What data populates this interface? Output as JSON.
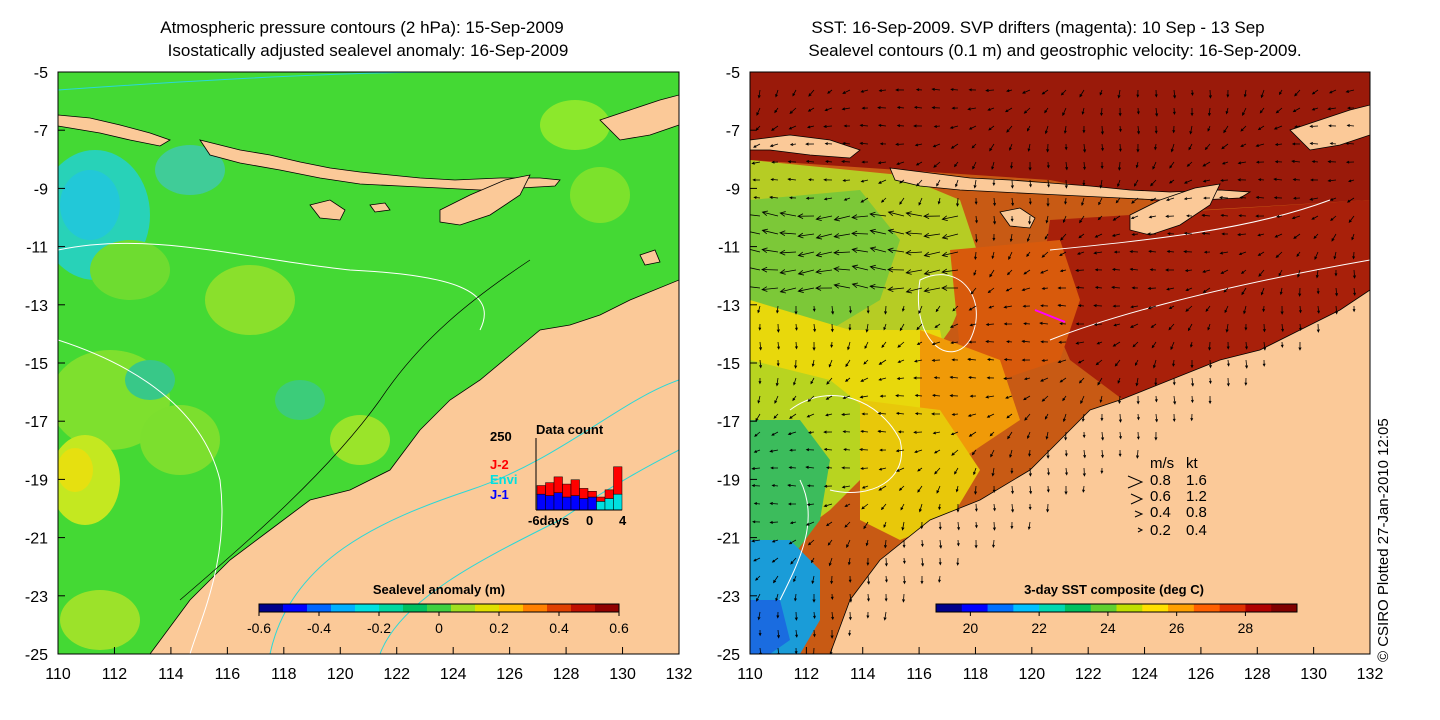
{
  "left_panel": {
    "title_line1": "Atmospheric pressure contours (2 hPa): 15-Sep-2009",
    "title_line2": "Isostatically adjusted sealevel anomaly: 16-Sep-2009",
    "colorbar": {
      "label": "Sealevel anomaly (m)",
      "ticks": [
        "-0.6",
        "-0.4",
        "-0.2",
        "0",
        "0.2",
        "0.4",
        "0.6"
      ],
      "colors": [
        "#00008b",
        "#0000ff",
        "#0066ff",
        "#00b0ff",
        "#00e0e0",
        "#00d8a0",
        "#00c060",
        "#40d040",
        "#a0e020",
        "#e0e000",
        "#ffc000",
        "#ff8000",
        "#e04000",
        "#c01000",
        "#900000"
      ]
    },
    "inset": {
      "title": "Data count",
      "ymax_label": "250",
      "legend": [
        {
          "label": "J-2",
          "color": "#ff0000"
        },
        {
          "label": "Envi",
          "color": "#00e0e0"
        },
        {
          "label": "J-1",
          "color": "#0000ff"
        }
      ],
      "xlabel_left": "-6days",
      "xlabel_mid": "0",
      "xlabel_right": "4"
    }
  },
  "right_panel": {
    "title_line1": "SST: 16-Sep-2009. SVP drifters (magenta): 10 Sep - 13 Sep",
    "title_line2": "Sealevel contours (0.1 m) and geostrophic velocity: 16-Sep-2009.",
    "colorbar": {
      "label": "3-day SST composite (deg C)",
      "ticks": [
        "20",
        "22",
        "24",
        "26",
        "28"
      ],
      "colors": [
        "#00008b",
        "#0000ff",
        "#0070ff",
        "#00c0ff",
        "#00d8b0",
        "#00c060",
        "#60d030",
        "#c0e000",
        "#ffe000",
        "#ffa000",
        "#ff6000",
        "#e03000",
        "#b00000",
        "#800000"
      ]
    },
    "velocity_legend": {
      "header_ms": "m/s",
      "header_kt": "kt",
      "rows": [
        {
          "ms": "0.8",
          "kt": "1.6"
        },
        {
          "ms": "0.6",
          "kt": "1.2"
        },
        {
          "ms": "0.4",
          "kt": "0.8"
        },
        {
          "ms": "0.2",
          "kt": "0.4"
        }
      ]
    }
  },
  "credit": "© CSIRO Plotted 27-Jan-2010 12:05",
  "chart_data": [
    {
      "type": "heatmap",
      "title": "Atmospheric pressure contours (2 hPa): 15-Sep-2009 / Isostatically adjusted sealevel anomaly: 16-Sep-2009",
      "xlabel": "",
      "ylabel": "",
      "xlim": [
        110,
        132
      ],
      "ylim": [
        -25,
        -5
      ],
      "x_ticks": [
        110,
        112,
        114,
        116,
        118,
        120,
        122,
        124,
        126,
        128,
        130,
        132
      ],
      "y_ticks": [
        -5,
        -7,
        -9,
        -11,
        -13,
        -15,
        -17,
        -19,
        -21,
        -23,
        -25
      ],
      "colorbar_label": "Sealevel anomaly (m)",
      "colorbar_range": [
        -0.6,
        0.6
      ],
      "inset": {
        "type": "bar",
        "title": "Data count",
        "ylim": [
          0,
          250
        ],
        "x": [
          -6,
          -5,
          -4,
          -3,
          -2,
          -1,
          0,
          1,
          2,
          3
        ],
        "series": [
          {
            "name": "J-1",
            "values": [
              55,
              50,
              60,
              45,
              50,
              40,
              45,
              0,
              0,
              0
            ]
          },
          {
            "name": "Envi",
            "values": [
              0,
              0,
              0,
              0,
              0,
              0,
              0,
              30,
              40,
              55
            ]
          },
          {
            "name": "J-2",
            "values": [
              30,
              45,
              55,
              45,
              55,
              35,
              20,
              15,
              30,
              95
            ]
          }
        ]
      }
    },
    {
      "type": "heatmap",
      "title": "SST: 16-Sep-2009. SVP drifters (magenta): 10 Sep - 13 Sep / Sealevel contours (0.1 m) and geostrophic velocity: 16-Sep-2009.",
      "xlabel": "",
      "ylabel": "",
      "xlim": [
        110,
        132
      ],
      "ylim": [
        -25,
        -5
      ],
      "x_ticks": [
        110,
        112,
        114,
        116,
        118,
        120,
        122,
        124,
        126,
        128,
        130,
        132
      ],
      "y_ticks": [
        -5,
        -7,
        -9,
        -11,
        -13,
        -15,
        -17,
        -19,
        -21,
        -23,
        -25
      ],
      "colorbar_label": "3-day SST composite (deg C)",
      "colorbar_range": [
        19,
        29.5
      ],
      "colorbar_ticks": [
        20,
        22,
        24,
        26,
        28
      ],
      "velocity_scale": [
        {
          "ms": 0.8,
          "kt": 1.6
        },
        {
          "ms": 0.6,
          "kt": 1.2
        },
        {
          "ms": 0.4,
          "kt": 0.8
        },
        {
          "ms": 0.2,
          "kt": 0.4
        }
      ]
    }
  ]
}
